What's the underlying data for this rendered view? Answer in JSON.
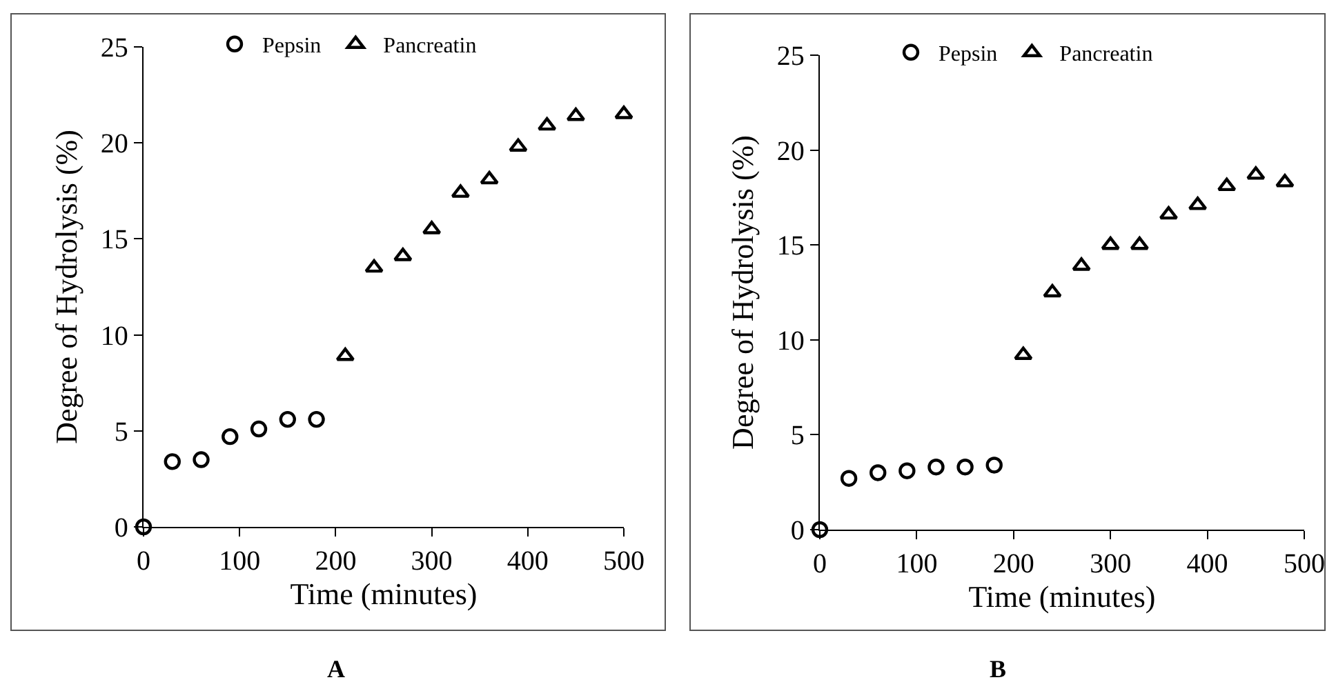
{
  "chart_data": [
    {
      "type": "scatter",
      "xlabel": "Time (minutes)",
      "ylabel": "Degree of Hydrolysis (%)",
      "xlim": [
        0,
        500
      ],
      "xticks": [
        0,
        100,
        200,
        300,
        400,
        500
      ],
      "ylim": [
        0,
        25
      ],
      "yticks": [
        0,
        5,
        10,
        15,
        20,
        25
      ],
      "legend": "top",
      "annotations": [
        "A"
      ],
      "series": [
        {
          "name": "Pepsin",
          "color": "#000000",
          "marker": "circle",
          "x": [
            0,
            30,
            60,
            90,
            120,
            150,
            180
          ],
          "values": [
            0,
            3.4,
            3.5,
            4.7,
            5.1,
            5.6,
            5.6
          ]
        },
        {
          "name": "Pancreatin",
          "color": "#000000",
          "marker": "triangle",
          "x": [
            210,
            240,
            270,
            300,
            330,
            360,
            390,
            420,
            450,
            500
          ],
          "values": [
            8.9,
            13.5,
            14.1,
            15.5,
            17.4,
            18.1,
            19.8,
            20.9,
            21.4,
            21.5
          ]
        }
      ]
    },
    {
      "type": "scatter",
      "xlabel": "Time (minutes)",
      "ylabel": "Degree of Hydrolysis (%)",
      "xlim": [
        0,
        500
      ],
      "xticks": [
        0,
        100,
        200,
        300,
        400,
        500
      ],
      "ylim": [
        0,
        25
      ],
      "yticks": [
        0,
        5,
        10,
        15,
        20,
        25
      ],
      "legend": "top",
      "annotations": [
        "B"
      ],
      "series": [
        {
          "name": "Pepsin",
          "color": "#000000",
          "marker": "circle",
          "x": [
            0,
            30,
            60,
            90,
            120,
            150,
            180
          ],
          "values": [
            0,
            2.7,
            3.0,
            3.1,
            3.3,
            3.3,
            3.4
          ]
        },
        {
          "name": "Pancreatin",
          "color": "#000000",
          "marker": "triangle",
          "x": [
            210,
            240,
            270,
            300,
            330,
            360,
            390,
            420,
            450,
            480
          ],
          "values": [
            9.2,
            12.5,
            13.9,
            15.0,
            15.0,
            16.6,
            17.1,
            18.1,
            18.7,
            18.3
          ]
        }
      ]
    }
  ]
}
